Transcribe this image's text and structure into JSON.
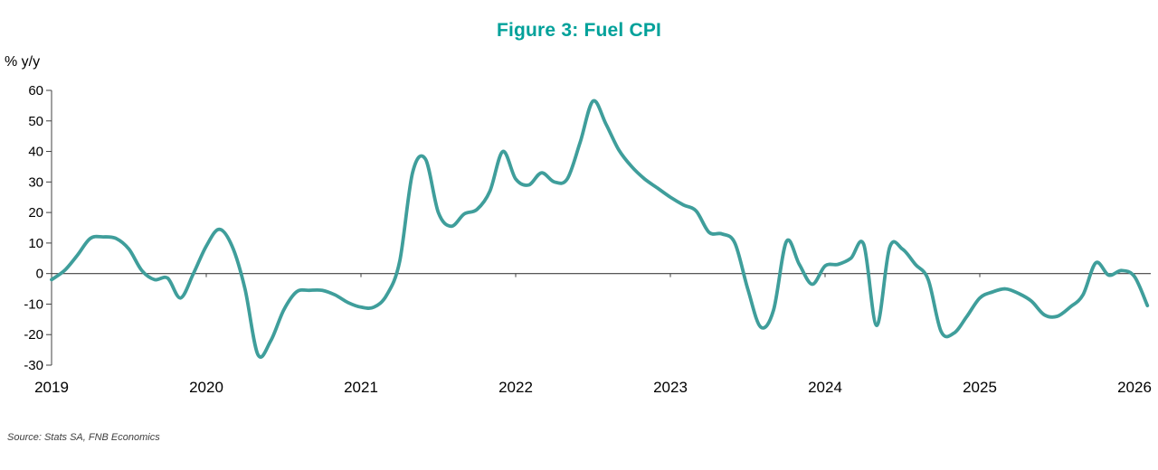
{
  "header": {
    "title": "Figure 3: Fuel CPI"
  },
  "axes": {
    "y_unit": "% y/y",
    "y_ticks": [
      60,
      50,
      40,
      30,
      20,
      10,
      0,
      -10,
      -20,
      -30
    ],
    "x_tick_labels": [
      "2019",
      "2020",
      "2021",
      "2022",
      "2023",
      "2024",
      "2025",
      "2026"
    ]
  },
  "source": {
    "text": "Source: Stats SA, FNB Economics"
  },
  "colors": {
    "title": "#00A19A",
    "line": "#3F9E9B",
    "axis": "#404040",
    "tick": "#404040"
  },
  "chart_data": {
    "type": "line",
    "title": "Figure 3: Fuel CPI",
    "ylabel": "% y/y",
    "ylim": [
      -30,
      60
    ],
    "grid": false,
    "legend": "none",
    "zero_line": true,
    "frequency": "monthly",
    "x_start": "2019-01",
    "x_end": "2026-02",
    "x_tick_labels": [
      "2019",
      "2020",
      "2021",
      "2022",
      "2023",
      "2024",
      "2025",
      "2026"
    ],
    "series": [
      {
        "name": "Fuel CPI (% y/y)",
        "values": [
          -2,
          1,
          6,
          11.5,
          12,
          11.5,
          8,
          1,
          -2,
          -1.5,
          -8,
          0,
          9,
          14.5,
          9,
          -5,
          -26.5,
          -22,
          -12,
          -6,
          -5.5,
          -5.5,
          -7,
          -9.5,
          -11,
          -11,
          -7,
          4,
          33,
          37.5,
          20,
          15.5,
          19.5,
          21,
          27,
          40,
          31,
          29,
          33,
          30,
          31,
          43,
          56.5,
          49,
          40.5,
          35,
          31,
          28,
          25,
          22.5,
          20.5,
          13.5,
          13,
          10,
          -5,
          -17.5,
          -12,
          10.5,
          3,
          -3.5,
          2.5,
          3,
          5,
          9.5,
          -17,
          8.5,
          8,
          3,
          -2,
          -19,
          -19.5,
          -14,
          -8,
          -6,
          -5,
          -6.5,
          -9,
          -13.5,
          -14,
          -11,
          -7,
          3.5,
          -0.5,
          1,
          -1,
          -10.5
        ]
      }
    ]
  }
}
